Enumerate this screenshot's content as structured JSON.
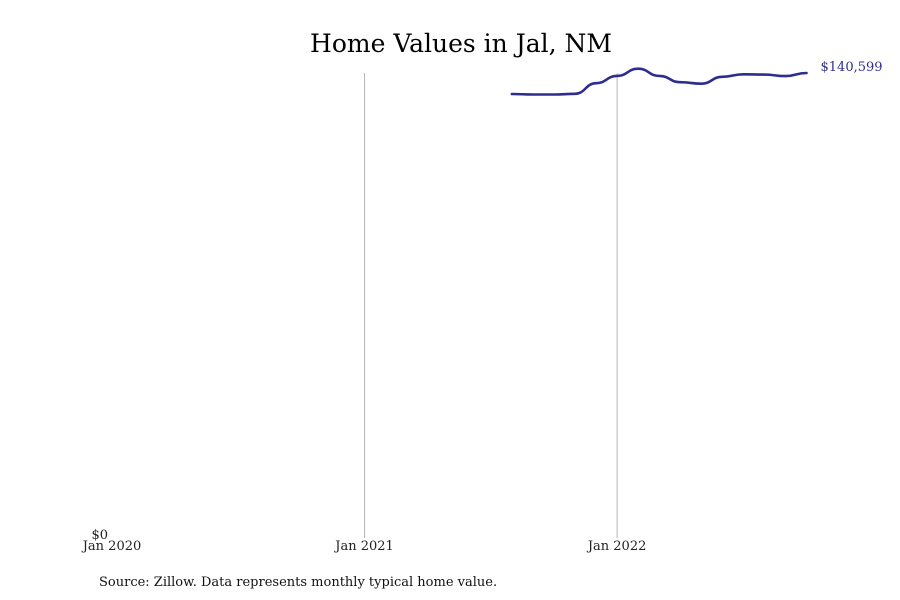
{
  "chart_data": {
    "type": "line",
    "title": "Home Values in Jal, NM",
    "xlabel": "",
    "ylabel": "",
    "x_tick_labels": [
      "Jan 2020",
      "Jan 2021",
      "Jan 2022"
    ],
    "y_tick_labels": [
      "$0"
    ],
    "x_range": [
      "2020-01",
      "2022-12"
    ],
    "ylim": [
      0,
      140599
    ],
    "grid": "vertical",
    "legend": "none",
    "line_color": "#2e2d8f",
    "end_label": "$140,599",
    "series": [
      {
        "x": [
          "2021-08",
          "2021-09",
          "2021-10",
          "2021-11",
          "2021-12",
          "2022-01",
          "2022-02",
          "2022-03",
          "2022-04",
          "2022-05",
          "2022-06",
          "2022-07",
          "2022-08",
          "2022-09",
          "2022-10"
        ],
        "values": [
          134200,
          134050,
          134050,
          134250,
          137500,
          139700,
          141900,
          139700,
          137800,
          137350,
          139450,
          140200,
          140100,
          139650,
          140599
        ]
      }
    ]
  },
  "source": "Source: Zillow. Data represents monthly typical home value."
}
